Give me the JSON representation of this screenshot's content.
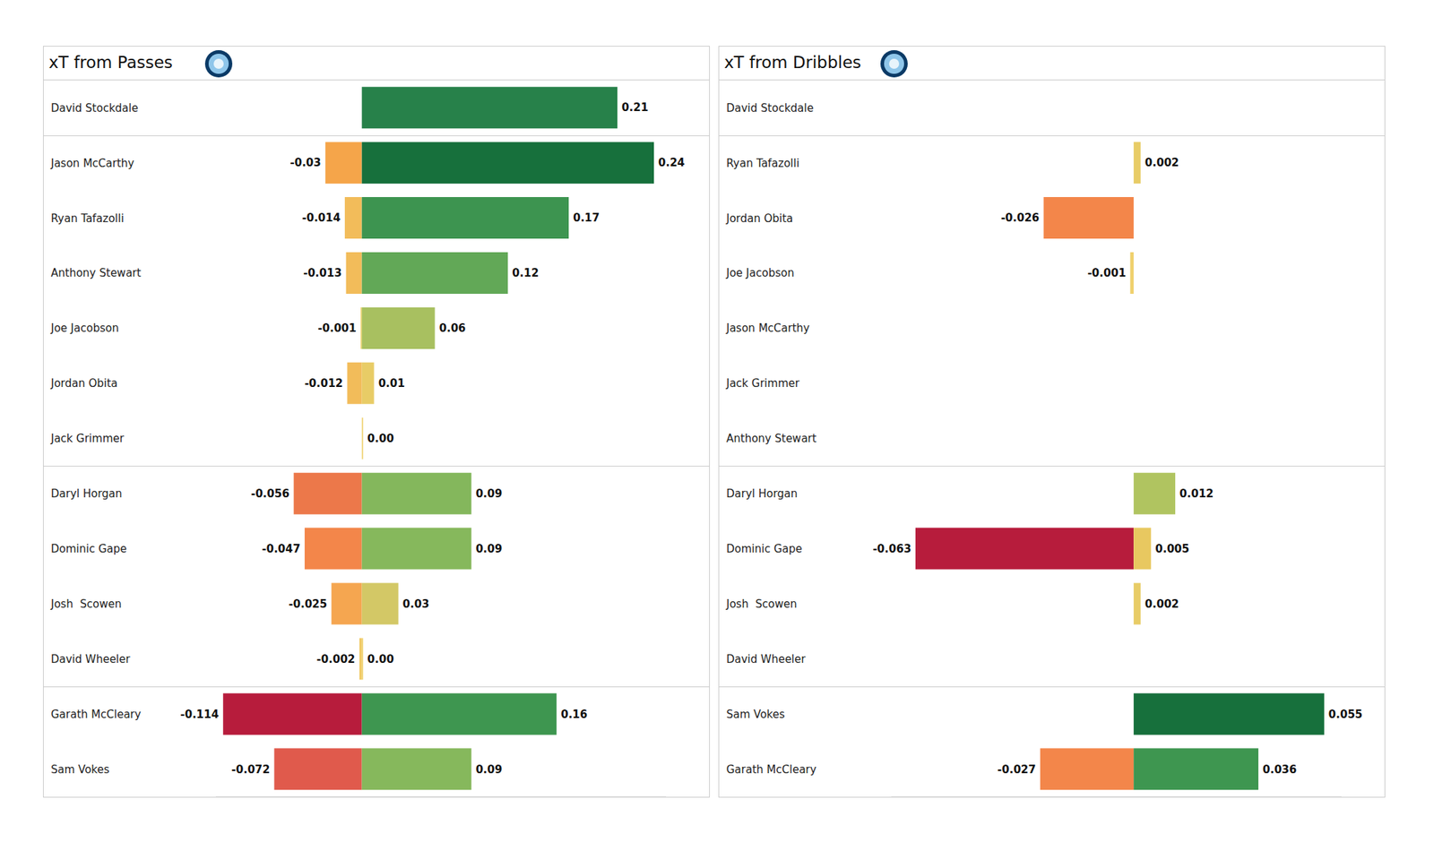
{
  "chart_data": [
    {
      "type": "bar",
      "title": "xT from Passes",
      "orientation": "horizontal",
      "stacked": true,
      "data_labels": true,
      "tick_labels": "y",
      "grid": false,
      "categories": [
        "David Stockdale",
        "Jason McCarthy",
        "Ryan Tafazolli",
        "Anthony Stewart",
        "Joe Jacobson",
        "Jordan Obita",
        "Jack Grimmer",
        "Daryl Horgan",
        "Dominic Gape",
        "Josh  Scowen",
        "David Wheeler",
        "Garath McCleary",
        "Sam Vokes"
      ],
      "xlim": [
        -0.12,
        0.25
      ],
      "series": [
        {
          "values": [
            0,
            -0.03,
            -0.014,
            -0.013,
            -0.001,
            -0.012,
            0,
            -0.056,
            -0.047,
            -0.025,
            -0.002,
            -0.114,
            -0.072
          ],
          "value_labels": [
            "0",
            "-0.03",
            "-0.014",
            "-0.013",
            "-0.001",
            "-0.012",
            "0",
            "-0.056",
            "-0.047",
            "-0.025",
            "-0.002",
            "-0.114",
            "-0.072"
          ],
          "colors": [
            "#efd06c",
            "#f5a54a",
            "#f2bc5a",
            "#f2bc5a",
            "#f0d26a",
            "#f2bc5a",
            "#efd06c",
            "#ec784a",
            "#f3864a",
            "#f5a650",
            "#f0c860",
            "#b71c3c",
            "#e05a4c"
          ]
        },
        {
          "values": [
            0.21,
            0.24,
            0.17,
            0.12,
            0.06,
            0.01,
            0.001,
            0.09,
            0.09,
            0.03,
            0.001,
            0.16,
            0.09
          ],
          "value_labels": [
            "0.21",
            "0.24",
            "0.17",
            "0.12",
            "0.06",
            "0.01",
            "0.00",
            "0.09",
            "0.09",
            "0.03",
            "0.00",
            "0.16",
            "0.09"
          ],
          "colors": [
            "#27814a",
            "#17703c",
            "#3d9450",
            "#62a857",
            "#a8c060",
            "#e8cc66",
            "#efd06c",
            "#84b75c",
            "#86b85c",
            "#d3c866",
            "#efd06c",
            "#3e9650",
            "#86b85c"
          ]
        }
      ]
    },
    {
      "type": "bar",
      "title": "xT from Dribbles",
      "orientation": "horizontal",
      "stacked": true,
      "data_labels": true,
      "tick_labels": "y",
      "grid": false,
      "categories": [
        "David Stockdale",
        "Ryan Tafazolli",
        "Jordan Obita",
        "Joe Jacobson",
        "Jason McCarthy",
        "Jack Grimmer",
        "Anthony Stewart",
        "Daryl Horgan",
        "Dominic Gape",
        "Josh  Scowen",
        "David Wheeler",
        "Sam Vokes",
        "Garath McCleary"
      ],
      "xlim": [
        -0.07,
        0.06
      ],
      "series": [
        {
          "values": [
            0,
            0,
            -0.026,
            -0.001,
            0,
            0,
            0,
            0,
            -0.063,
            0,
            0,
            0,
            -0.027
          ],
          "value_labels": [
            "0",
            "0",
            "-0.026",
            "-0.001",
            "0",
            "0",
            "0",
            "0",
            "-0.063",
            "0",
            "0",
            "0",
            "-0.027"
          ],
          "colors": [
            "#efd06c",
            "#efd06c",
            "#f3864a",
            "#efd06c",
            "#efd06c",
            "#efd06c",
            "#efd06c",
            "#efd06c",
            "#b71c3c",
            "#efd06c",
            "#efd06c",
            "#efd06c",
            "#f3864a"
          ]
        },
        {
          "values": [
            0,
            0.002,
            0,
            0,
            0,
            0,
            0,
            0.012,
            0.005,
            0.002,
            0,
            0.055,
            0.036
          ],
          "value_labels": [
            "0",
            "0.002",
            "0",
            "0",
            "0",
            "0",
            "0",
            "0.012",
            "0.005",
            "0.002",
            "0",
            "0.055",
            "0.036"
          ],
          "colors": [
            "#efd06c",
            "#e8cc66",
            "#efd06c",
            "#efd06c",
            "#efd06c",
            "#efd06c",
            "#efd06c",
            "#b0c460",
            "#e8c860",
            "#e8cc66",
            "#efd06c",
            "#17703c",
            "#3e9650"
          ]
        }
      ]
    }
  ]
}
